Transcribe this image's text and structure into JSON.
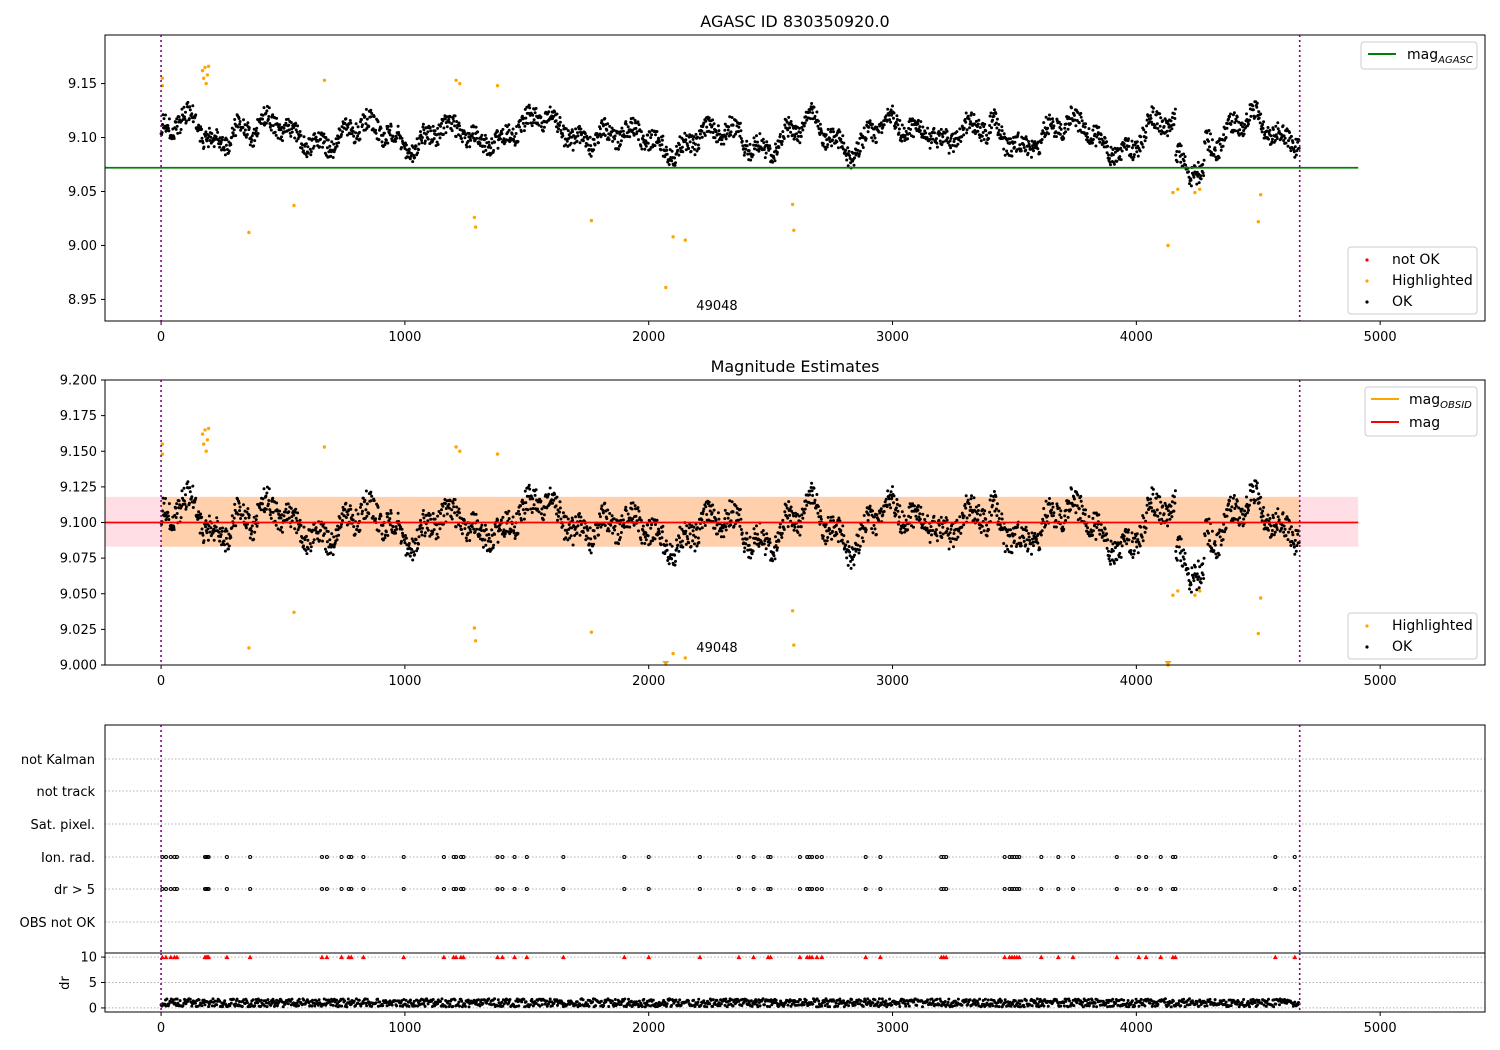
{
  "chart_data": [
    {
      "type": "scatter",
      "title": "AGASC ID 830350920.0",
      "xlim": [
        -230,
        5430
      ],
      "ylim": [
        8.93,
        9.195
      ],
      "xticks": [
        0,
        1000,
        2000,
        3000,
        4000,
        5000
      ],
      "yticks": [
        8.95,
        9.0,
        9.05,
        9.1,
        9.15
      ],
      "ytick_labels": [
        "8.95",
        "9.00",
        "9.05",
        "9.10",
        "9.15"
      ],
      "vlines": [
        0,
        4670
      ],
      "hline": {
        "name": "mag_AGASC",
        "y": 9.072,
        "color": "#008000",
        "x": [
          -230,
          4910
        ]
      },
      "annotation": {
        "text": "49048",
        "x": 2280,
        "y": 8.945
      },
      "series": [
        {
          "name": "not OK",
          "color": "#ff0000",
          "n_points": 0
        },
        {
          "name": "Highlighted",
          "color": "#ffa500",
          "points": [
            [
              5,
              9.155
            ],
            [
              5,
              9.148
            ],
            [
              170,
              9.162
            ],
            [
              175,
              9.155
            ],
            [
              180,
              9.165
            ],
            [
              185,
              9.15
            ],
            [
              190,
              9.158
            ],
            [
              195,
              9.166
            ],
            [
              360,
              9.012
            ],
            [
              545,
              9.037
            ],
            [
              670,
              9.153
            ],
            [
              1210,
              9.153
            ],
            [
              1225,
              9.15
            ],
            [
              1285,
              9.026
            ],
            [
              1290,
              9.017
            ],
            [
              1380,
              9.148
            ],
            [
              1765,
              9.023
            ],
            [
              2070,
              8.961
            ],
            [
              2100,
              9.008
            ],
            [
              2150,
              9.005
            ],
            [
              2590,
              9.038
            ],
            [
              2595,
              9.014
            ],
            [
              4130,
              9.0
            ],
            [
              4150,
              9.049
            ],
            [
              4170,
              9.052
            ],
            [
              4240,
              9.049
            ],
            [
              4260,
              9.052
            ],
            [
              4500,
              9.022
            ],
            [
              4510,
              9.047
            ]
          ]
        },
        {
          "name": "OK",
          "color": "#000000",
          "n_points": 4670
        }
      ],
      "legend": {
        "upper": [
          {
            "label": "mag",
            "sub": "AGASC",
            "color": "#008000",
            "kind": "line"
          }
        ],
        "lower": [
          {
            "label": "not OK",
            "color": "#ff0000",
            "kind": "point"
          },
          {
            "label": "Highlighted",
            "color": "#ffa500",
            "kind": "point"
          },
          {
            "label": "OK",
            "color": "#000000",
            "kind": "point"
          }
        ]
      }
    },
    {
      "type": "scatter",
      "title": "Magnitude Estimates",
      "xlim": [
        -230,
        5430
      ],
      "ylim": [
        9.0,
        9.2
      ],
      "xticks": [
        0,
        1000,
        2000,
        3000,
        4000,
        5000
      ],
      "yticks": [
        9.0,
        9.025,
        9.05,
        9.075,
        9.1,
        9.125,
        9.15,
        9.175,
        9.2
      ],
      "ytick_labels": [
        "9.000",
        "9.025",
        "9.050",
        "9.075",
        "9.100",
        "9.125",
        "9.150",
        "9.175",
        "9.200"
      ],
      "vlines": [
        0,
        4670
      ],
      "mag_line": {
        "name": "mag",
        "y": 9.1,
        "color": "#ff0000",
        "x": [
          -230,
          4910
        ]
      },
      "mag_band": {
        "y": [
          9.083,
          9.118
        ],
        "x": [
          -230,
          4910
        ],
        "color": "#ffc0cb"
      },
      "obsid_band": {
        "y": [
          9.083,
          9.118
        ],
        "x": [
          0,
          4670
        ],
        "color": "#ffa500"
      },
      "annotation": {
        "text": "49048",
        "x": 2280,
        "y": 9.01
      },
      "clipped_markers": [
        2070,
        4130
      ],
      "series": [
        {
          "name": "Highlighted",
          "color": "#ffa500",
          "same_as_panel": 0
        },
        {
          "name": "OK",
          "color": "#000000",
          "n_points": 4670
        }
      ],
      "legend": {
        "upper": [
          {
            "label": "mag",
            "sub": "OBSID",
            "color": "#ffa500",
            "kind": "line"
          },
          {
            "label": "mag",
            "sub": "",
            "color": "#ff0000",
            "kind": "line"
          }
        ],
        "lower": [
          {
            "label": "Highlighted",
            "color": "#ffa500",
            "kind": "point"
          },
          {
            "label": "OK",
            "color": "#000000",
            "kind": "point"
          }
        ]
      }
    },
    {
      "type": "scatter",
      "title": "",
      "xlim": [
        -230,
        5430
      ],
      "vlines": [
        0,
        4670
      ],
      "flag_rows": [
        "not Kalman",
        "not track",
        "Sat. pixel.",
        "Ion. rad.",
        "dr > 5",
        "OBS not OK"
      ],
      "flag_rows_with_points": [
        "Ion. rad.",
        "dr > 5"
      ],
      "flag_x": [
        5,
        20,
        40,
        55,
        65,
        180,
        185,
        190,
        195,
        270,
        365,
        660,
        680,
        740,
        770,
        780,
        830,
        995,
        1160,
        1200,
        1210,
        1230,
        1240,
        1380,
        1400,
        1450,
        1500,
        1650,
        1900,
        2000,
        2210,
        2370,
        2430,
        2490,
        2500,
        2620,
        2650,
        2660,
        2670,
        2690,
        2710,
        2890,
        2950,
        3200,
        3210,
        3220,
        3460,
        3480,
        3490,
        3500,
        3510,
        3520,
        3610,
        3680,
        3740,
        3920,
        4010,
        4040,
        4100,
        4150,
        4160,
        4570,
        4650
      ]
    },
    {
      "type": "scatter",
      "title": "",
      "xlim": [
        -230,
        5430
      ],
      "ylim": [
        -0.8,
        10.8
      ],
      "xticks": [
        0,
        1000,
        2000,
        3000,
        4000,
        5000
      ],
      "yticks": [
        0,
        5,
        10
      ],
      "ytick_labels": [
        "0",
        "5",
        "10"
      ],
      "ylabel": "dr",
      "vlines": [
        0,
        4670
      ],
      "series": [
        {
          "name": "dr",
          "color": "#000000",
          "n_points": 4670,
          "typical_range": [
            0.2,
            1.8
          ]
        },
        {
          "name": "dr > 10",
          "color": "#ff0000",
          "y": 10,
          "x_same_as": "flag_x"
        }
      ]
    }
  ]
}
